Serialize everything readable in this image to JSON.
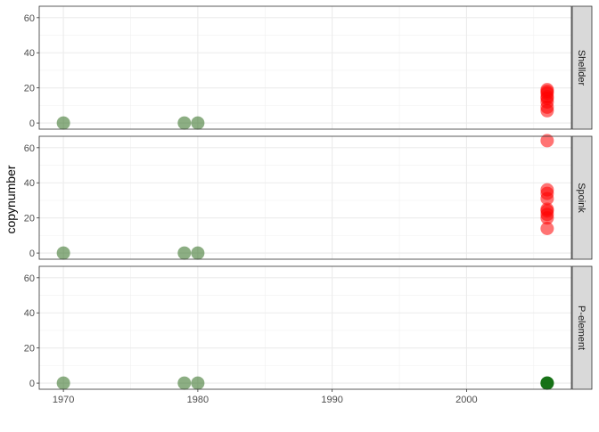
{
  "chart_data": {
    "type": "scatter",
    "xlabel": "",
    "ylabel": "copynumber",
    "xlim": [
      1968.2,
      2007.8
    ],
    "ylim": [
      -3.5,
      66.5
    ],
    "x_ticks": [
      1970,
      1980,
      1990,
      2000
    ],
    "y_ticks": [
      0,
      20,
      40,
      60
    ],
    "grid": true,
    "colors": {
      "old": "#2e6b1e",
      "recent": "#ff0000",
      "recent_zero": "#006400"
    },
    "facets": [
      {
        "label": "Shellder",
        "points": [
          {
            "x": 1970,
            "y": 0,
            "group": "old"
          },
          {
            "x": 1979,
            "y": 0,
            "group": "old"
          },
          {
            "x": 1980,
            "y": 0,
            "group": "old"
          },
          {
            "x": 2006,
            "y": 7,
            "group": "recent"
          },
          {
            "x": 2006,
            "y": 9,
            "group": "recent"
          },
          {
            "x": 2006,
            "y": 12,
            "group": "recent"
          },
          {
            "x": 2006,
            "y": 14,
            "group": "recent"
          },
          {
            "x": 2006,
            "y": 15,
            "group": "recent"
          },
          {
            "x": 2006,
            "y": 17,
            "group": "recent"
          },
          {
            "x": 2006,
            "y": 18,
            "group": "recent"
          },
          {
            "x": 2006,
            "y": 19,
            "group": "recent"
          }
        ]
      },
      {
        "label": "Spoink",
        "points": [
          {
            "x": 1970,
            "y": 0,
            "group": "old"
          },
          {
            "x": 1979,
            "y": 0,
            "group": "old"
          },
          {
            "x": 1980,
            "y": 0,
            "group": "old"
          },
          {
            "x": 2006,
            "y": 14,
            "group": "recent"
          },
          {
            "x": 2006,
            "y": 20,
            "group": "recent"
          },
          {
            "x": 2006,
            "y": 22,
            "group": "recent"
          },
          {
            "x": 2006,
            "y": 24,
            "group": "recent"
          },
          {
            "x": 2006,
            "y": 25,
            "group": "recent"
          },
          {
            "x": 2006,
            "y": 31,
            "group": "recent"
          },
          {
            "x": 2006,
            "y": 34,
            "group": "recent"
          },
          {
            "x": 2006,
            "y": 36,
            "group": "recent"
          },
          {
            "x": 2006,
            "y": 64,
            "group": "recent"
          }
        ]
      },
      {
        "label": "P-element",
        "points": [
          {
            "x": 1970,
            "y": 0,
            "group": "old"
          },
          {
            "x": 1979,
            "y": 0,
            "group": "old"
          },
          {
            "x": 1980,
            "y": 0,
            "group": "old"
          },
          {
            "x": 2006,
            "y": 0,
            "group": "recent_zero"
          },
          {
            "x": 2006,
            "y": 0,
            "group": "recent_zero"
          },
          {
            "x": 2006,
            "y": 0,
            "group": "recent_zero"
          }
        ]
      }
    ]
  }
}
